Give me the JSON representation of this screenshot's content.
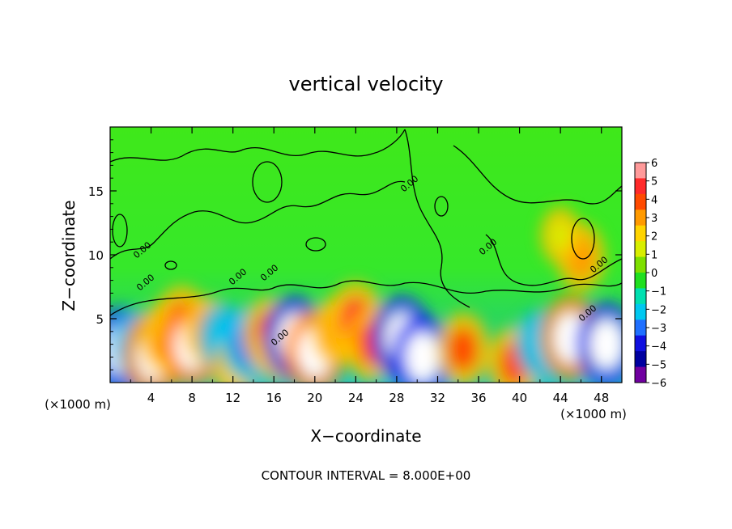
{
  "chart_data": {
    "type": "heatmap",
    "title": "vertical velocity",
    "xlabel": "X−coordinate",
    "ylabel": "Z−coordinate",
    "x_unit_left": "(×1000 m)",
    "x_unit_right": "(×1000 m)",
    "footer": "CONTOUR INTERVAL = 8.000E+00",
    "xlim": [
      0,
      50
    ],
    "ylim": [
      0,
      20
    ],
    "x_ticks": [
      4,
      8,
      12,
      16,
      20,
      24,
      28,
      32,
      36,
      40,
      44,
      48
    ],
    "x_tick_labels": [
      "4",
      "8",
      "12",
      "16",
      "20",
      "24",
      "28",
      "32",
      "36",
      "40",
      "44",
      "48"
    ],
    "y_ticks": [
      5,
      10,
      15
    ],
    "y_tick_labels": [
      "5",
      "10",
      "15"
    ],
    "colorbar": {
      "ticks": [
        6,
        5,
        4,
        3,
        2,
        1,
        0,
        -1,
        -2,
        -3,
        -4,
        -5,
        -6
      ],
      "tick_labels": [
        "6",
        "5",
        "4",
        "3",
        "2",
        "1",
        "0",
        "−1",
        "−2",
        "−3",
        "−4",
        "−5",
        "−6"
      ],
      "colors": [
        "#ff9a9a",
        "#ff2a2a",
        "#ff4a00",
        "#ff9a00",
        "#ffd400",
        "#d8ee00",
        "#7ee000",
        "#20e020",
        "#00e0b0",
        "#00c8f0",
        "#2070ff",
        "#1010e0",
        "#0000a0",
        "#7000a0"
      ]
    },
    "contour_label": "0.00",
    "cells": [
      {
        "x": 1.0,
        "z": 2.6,
        "w": -9
      },
      {
        "x": 2.5,
        "z": 3.0,
        "w": -3
      },
      {
        "x": 4.2,
        "z": 2.2,
        "w": 9
      },
      {
        "x": 5.5,
        "z": 3.5,
        "w": 4
      },
      {
        "x": 7.0,
        "z": 4.5,
        "w": 5
      },
      {
        "x": 8.0,
        "z": 3.0,
        "w": 7
      },
      {
        "x": 9.5,
        "z": 4.0,
        "w": 3
      },
      {
        "x": 11.0,
        "z": 3.5,
        "w": -3
      },
      {
        "x": 12.2,
        "z": 1.2,
        "w": 2
      },
      {
        "x": 13.5,
        "z": 3.0,
        "w": -4
      },
      {
        "x": 15.5,
        "z": 3.8,
        "w": 4
      },
      {
        "x": 16.5,
        "z": 2.5,
        "w": 2
      },
      {
        "x": 18.0,
        "z": 3.5,
        "w": -8
      },
      {
        "x": 20.0,
        "z": 2.4,
        "w": 9
      },
      {
        "x": 22.0,
        "z": 4.0,
        "w": 3
      },
      {
        "x": 24.0,
        "z": 4.8,
        "w": 5
      },
      {
        "x": 25.5,
        "z": 3.0,
        "w": 4
      },
      {
        "x": 28.5,
        "z": 3.5,
        "w": -8
      },
      {
        "x": 30.5,
        "z": 2.0,
        "w": -8
      },
      {
        "x": 34.5,
        "z": 2.6,
        "w": 4
      },
      {
        "x": 39.5,
        "z": 1.5,
        "w": 4
      },
      {
        "x": 42.0,
        "z": 3.0,
        "w": -3
      },
      {
        "x": 45.0,
        "z": 3.5,
        "w": 9
      },
      {
        "x": 48.5,
        "z": 3.0,
        "w": -9
      },
      {
        "x": 46.0,
        "z": 9.8,
        "w": 3
      },
      {
        "x": 44.0,
        "z": 11.5,
        "w": 1
      }
    ]
  }
}
